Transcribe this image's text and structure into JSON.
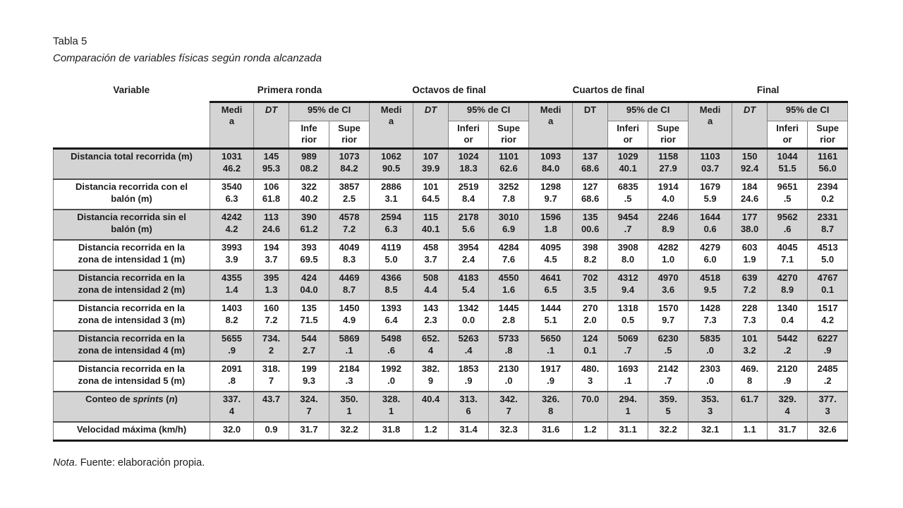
{
  "page": {
    "title": "Tabla 5",
    "subtitle": "Comparación de variables físicas según ronda alcanzada",
    "note": {
      "lead": "Nota",
      "rest": ". Fuente: elaboración propia."
    }
  },
  "table": {
    "variable_header": "Variable",
    "colors": {
      "band": "#d4d4d4",
      "grid": "#7f7f7f",
      "row_rule": "#4f4f4f",
      "heavy_rule": "#1a1a1a",
      "text": "#1c1c1c"
    },
    "groups": [
      {
        "label": "Primera ronda",
        "media": "Medi\na",
        "dt": "DT",
        "dt_italic": true,
        "ci": "95% de CI",
        "inferior": "Infe\nrior",
        "superior": "Supe\nrior"
      },
      {
        "label": "Octavos de final",
        "media": "Medi\na",
        "dt": "DT",
        "dt_italic": true,
        "ci": "95% de CI",
        "inferior": "Inferi\nor",
        "superior": "Supe\nrior"
      },
      {
        "label": "Cuartos de final",
        "media": "Medi\na",
        "dt": "DT",
        "dt_italic": false,
        "ci": "95% de CI",
        "inferior": "Inferi\nor",
        "superior": "Supe\nrior"
      },
      {
        "label": "Final",
        "media": "Medi\na",
        "dt": "DT",
        "dt_italic": true,
        "ci": "95% de CI",
        "inferior": "Inferi\nor",
        "superior": "Supe\nrior"
      }
    ],
    "rows": [
      {
        "label": "Distancia total recorrida (m)",
        "shaded": true,
        "values": [
          "1031\n46.2",
          "145\n95.3",
          "989\n08.2",
          "1073\n84.2",
          "1062\n90.5",
          "107\n39.9",
          "1024\n18.3",
          "1101\n62.6",
          "1093\n84.0",
          "137\n68.6",
          "1029\n40.1",
          "1158\n27.9",
          "1103\n03.7",
          "150\n92.4",
          "1044\n51.5",
          "1161\n56.0"
        ]
      },
      {
        "label": "Distancia recorrida con el\nbalón (m)",
        "shaded": false,
        "values": [
          "3540\n6.3",
          "106\n61.8",
          "322\n40.2",
          "3857\n2.5",
          "2886\n3.1",
          "101\n64.5",
          "2519\n8.4",
          "3252\n7.8",
          "1298\n9.7",
          "127\n68.6",
          "6835\n.5",
          "1914\n4.0",
          "1679\n5.9",
          "184\n24.6",
          "9651\n.5",
          "2394\n0.2"
        ]
      },
      {
        "label": "Distancia recorrida sin el\nbalón (m)",
        "shaded": true,
        "values": [
          "4242\n4.2",
          "113\n24.6",
          "390\n61.2",
          "4578\n7.2",
          "2594\n6.3",
          "115\n40.1",
          "2178\n5.6",
          "3010\n6.9",
          "1596\n1.8",
          "135\n00.6",
          "9454\n.7",
          "2246\n8.9",
          "1644\n0.6",
          "177\n38.0",
          "9562\n.6",
          "2331\n8.7"
        ]
      },
      {
        "label": "Distancia recorrida en la\nzona de intensidad 1 (m)",
        "shaded": false,
        "values": [
          "3993\n3.9",
          "194\n3.7",
          "393\n69.5",
          "4049\n8.3",
          "4119\n5.0",
          "458\n3.7",
          "3954\n2.4",
          "4284\n7.6",
          "4095\n4.5",
          "398\n8.2",
          "3908\n8.0",
          "4282\n1.0",
          "4279\n6.0",
          "603\n1.9",
          "4045\n7.1",
          "4513\n5.0"
        ]
      },
      {
        "label": "Distancia recorrida en la\nzona de intensidad 2 (m)",
        "shaded": true,
        "values": [
          "4355\n1.4",
          "395\n1.3",
          "424\n04.0",
          "4469\n8.7",
          "4366\n8.5",
          "508\n4.4",
          "4183\n5.4",
          "4550\n1.6",
          "4641\n6.5",
          "702\n3.5",
          "4312\n9.4",
          "4970\n3.6",
          "4518\n9.5",
          "639\n7.2",
          "4270\n8.9",
          "4767\n0.1"
        ]
      },
      {
        "label": "Distancia recorrida en la\nzona de intensidad 3 (m)",
        "shaded": false,
        "values": [
          "1403\n8.2",
          "160\n7.2",
          "135\n71.5",
          "1450\n4.9",
          "1393\n6.4",
          "143\n2.3",
          "1342\n0.0",
          "1445\n2.8",
          "1444\n5.1",
          "270\n2.0",
          "1318\n0.5",
          "1570\n9.7",
          "1428\n7.3",
          "228\n7.3",
          "1340\n0.4",
          "1517\n4.2"
        ]
      },
      {
        "label": "Distancia recorrida en la\nzona de intensidad 4 (m)",
        "shaded": true,
        "values": [
          "5655\n.9",
          "734.\n2",
          "544\n2.7",
          "5869\n.1",
          "5498\n.6",
          "652.\n4",
          "5263\n.4",
          "5733\n.8",
          "5650\n.1",
          "124\n0.1",
          "5069\n.7",
          "6230\n.5",
          "5835\n.0",
          "101\n3.2",
          "5442\n.2",
          "6227\n.9"
        ]
      },
      {
        "label": "Distancia recorrida en la\nzona de intensidad 5 (m)",
        "shaded": false,
        "values": [
          "2091\n.8",
          "318.\n7",
          "199\n9.3",
          "2184\n.3",
          "1992\n.0",
          "382.\n9",
          "1853\n.9",
          "2130\n.0",
          "1917\n.9",
          "480.\n3",
          "1693\n.1",
          "2142\n.7",
          "2303\n.0",
          "469.\n8",
          "2120\n.9",
          "2485\n.2"
        ]
      },
      {
        "label_parts": [
          {
            "t": "Conteo de "
          },
          {
            "t": "sprints",
            "i": true
          },
          {
            "t": " ("
          },
          {
            "t": "n",
            "i": true
          },
          {
            "t": ")"
          }
        ],
        "shaded": true,
        "values": [
          "337.\n4",
          "43.7",
          "324.\n7",
          "350.\n1",
          "328.\n1",
          "40.4",
          "313.\n6",
          "342.\n7",
          "326.\n8",
          "70.0",
          "294.\n1",
          "359.\n5",
          "353.\n3",
          "61.7",
          "329.\n4",
          "377.\n3"
        ]
      },
      {
        "label": "Velocidad máxima (km/h)",
        "shaded": false,
        "values": [
          "32.0",
          "0.9",
          "31.7",
          "32.2",
          "31.8",
          "1.2",
          "31.4",
          "32.3",
          "31.6",
          "1.2",
          "31.1",
          "32.2",
          "32.1",
          "1.1",
          "31.7",
          "32.6"
        ]
      }
    ]
  }
}
